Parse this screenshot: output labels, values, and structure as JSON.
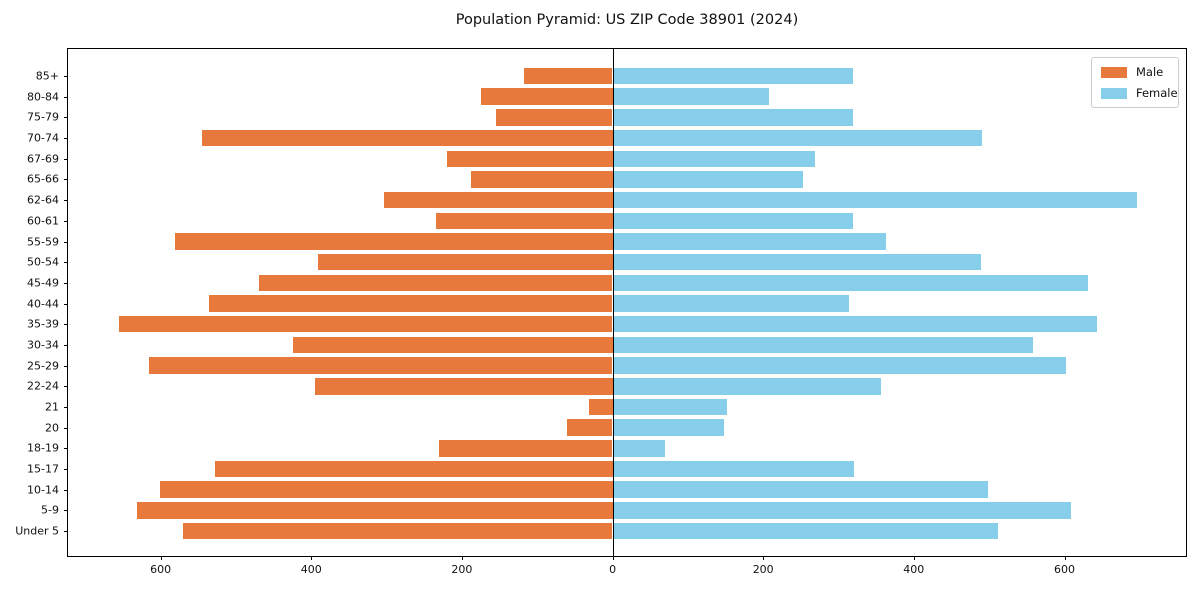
{
  "title": "Population Pyramid: US ZIP Code 38901 (2024)",
  "colors": {
    "male": "#E8793D",
    "female": "#87CEEB",
    "axis": "#000000",
    "text": "#111111",
    "legend_border": "#cccccc",
    "background": "#ffffff"
  },
  "chart_data": {
    "type": "bar",
    "variant": "population-pyramid",
    "orientation": "horizontal",
    "title": "Population Pyramid: US ZIP Code 38901 (2024)",
    "xlabel": "",
    "ylabel": "",
    "categories": [
      "85+",
      "80-84",
      "75-79",
      "70-74",
      "67-69",
      "65-66",
      "62-64",
      "60-61",
      "55-59",
      "50-54",
      "45-49",
      "40-44",
      "35-39",
      "30-34",
      "25-29",
      "22-24",
      "21",
      "20",
      "18-19",
      "15-17",
      "10-14",
      "5-9",
      "Under 5"
    ],
    "series": [
      {
        "name": "Male",
        "side": "left",
        "color": "#E8793D",
        "values": [
          117,
          175,
          155,
          545,
          220,
          188,
          304,
          235,
          581,
          391,
          469,
          536,
          655,
          424,
          615,
          395,
          32,
          61,
          230,
          528,
          601,
          631,
          570
        ]
      },
      {
        "name": "Female",
        "side": "right",
        "color": "#87CEEB",
        "values": [
          318,
          207,
          318,
          489,
          268,
          252,
          695,
          318,
          362,
          488,
          630,
          313,
          642,
          557,
          601,
          355,
          150,
          147,
          68,
          319,
          497,
          607,
          510
        ]
      }
    ],
    "xlim": [
      -723,
      764
    ],
    "xticks": [
      -600,
      -400,
      -200,
      0,
      200,
      400,
      600
    ],
    "xtick_labels": [
      "600",
      "400",
      "200",
      "0",
      "200",
      "400",
      "600"
    ],
    "grid": false,
    "legend": {
      "position": "upper right",
      "entries": [
        {
          "label": "Male",
          "color": "#E8793D"
        },
        {
          "label": "Female",
          "color": "#87CEEB"
        }
      ]
    }
  }
}
